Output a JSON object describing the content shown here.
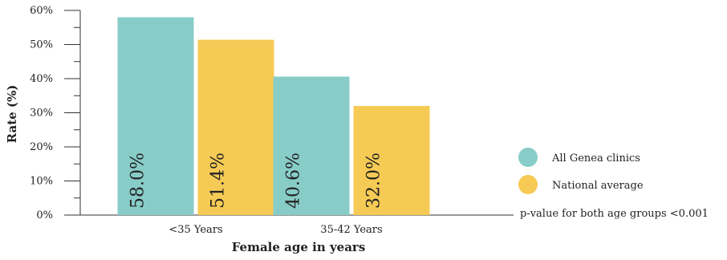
{
  "chart_data": {
    "type": "bar",
    "categories": [
      "<35 Years",
      "35-42 Years"
    ],
    "series": [
      {
        "name": "All Genea clinics",
        "values": [
          58.0,
          40.6
        ],
        "labels": [
          "58.0%",
          "40.6%"
        ],
        "color": "#88CCC8"
      },
      {
        "name": "National average",
        "values": [
          51.4,
          32.0
        ],
        "labels": [
          "51.4%",
          "32.0%"
        ],
        "color": "#F6CB55"
      }
    ],
    "xlabel": "Female age in years",
    "ylabel": "Rate (%)",
    "ylim": [
      0,
      60
    ],
    "yticks": [
      "0%",
      "10%",
      "20%",
      "30%",
      "40%",
      "50%",
      "60%"
    ],
    "grid": false,
    "legend_position": "right",
    "note": "p-value for both age groups <0.001"
  }
}
